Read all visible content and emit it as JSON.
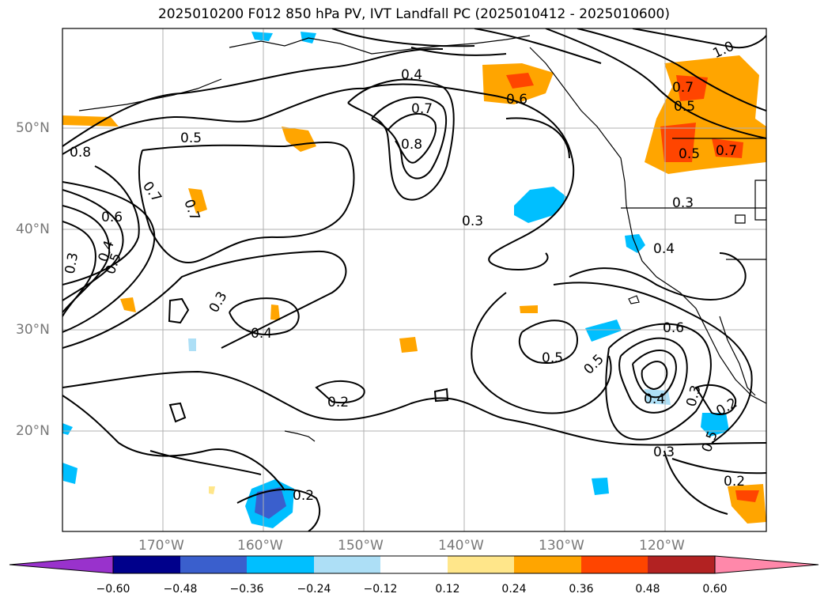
{
  "title": "2025010200 F012 850 hPa PV, IVT Landfall PC (2025010412 - 2025010600)",
  "lat_labels": [
    "50°N",
    "40°N",
    "30°N",
    "20°N"
  ],
  "lon_labels": [
    "170°W",
    "160°W",
    "150°W",
    "140°W",
    "130°W",
    "120°W"
  ],
  "contour_labels": [
    "1.0",
    "0.4",
    "0.6",
    "0.7",
    "0.5",
    "0.8",
    "0.5",
    "0.8",
    "0.7",
    "0.7",
    "0.6",
    "0.5",
    "0.4",
    "0.3",
    "0.7",
    "0.3",
    "0.3",
    "0.4",
    "0.3",
    "0.4",
    "0.6",
    "0.5",
    "0.5",
    "0.2",
    "0.4",
    "0.3",
    "0.2",
    "0.5",
    "0.3",
    "0.2",
    "0.2",
    "0.7",
    "0.5"
  ],
  "colorbar": {
    "ticks": [
      "−0.60",
      "−0.48",
      "−0.36",
      "−0.24",
      "−0.12",
      "0.12",
      "0.24",
      "0.36",
      "0.48",
      "0.60"
    ],
    "colors": [
      "#9932CC",
      "#00008B",
      "#3A5FCD",
      "#00BFFF",
      "#ADDFF6",
      "#FFFFFF",
      "#FFE68A",
      "#FFA500",
      "#FF4500",
      "#B22222",
      "#FF88AA"
    ]
  }
}
